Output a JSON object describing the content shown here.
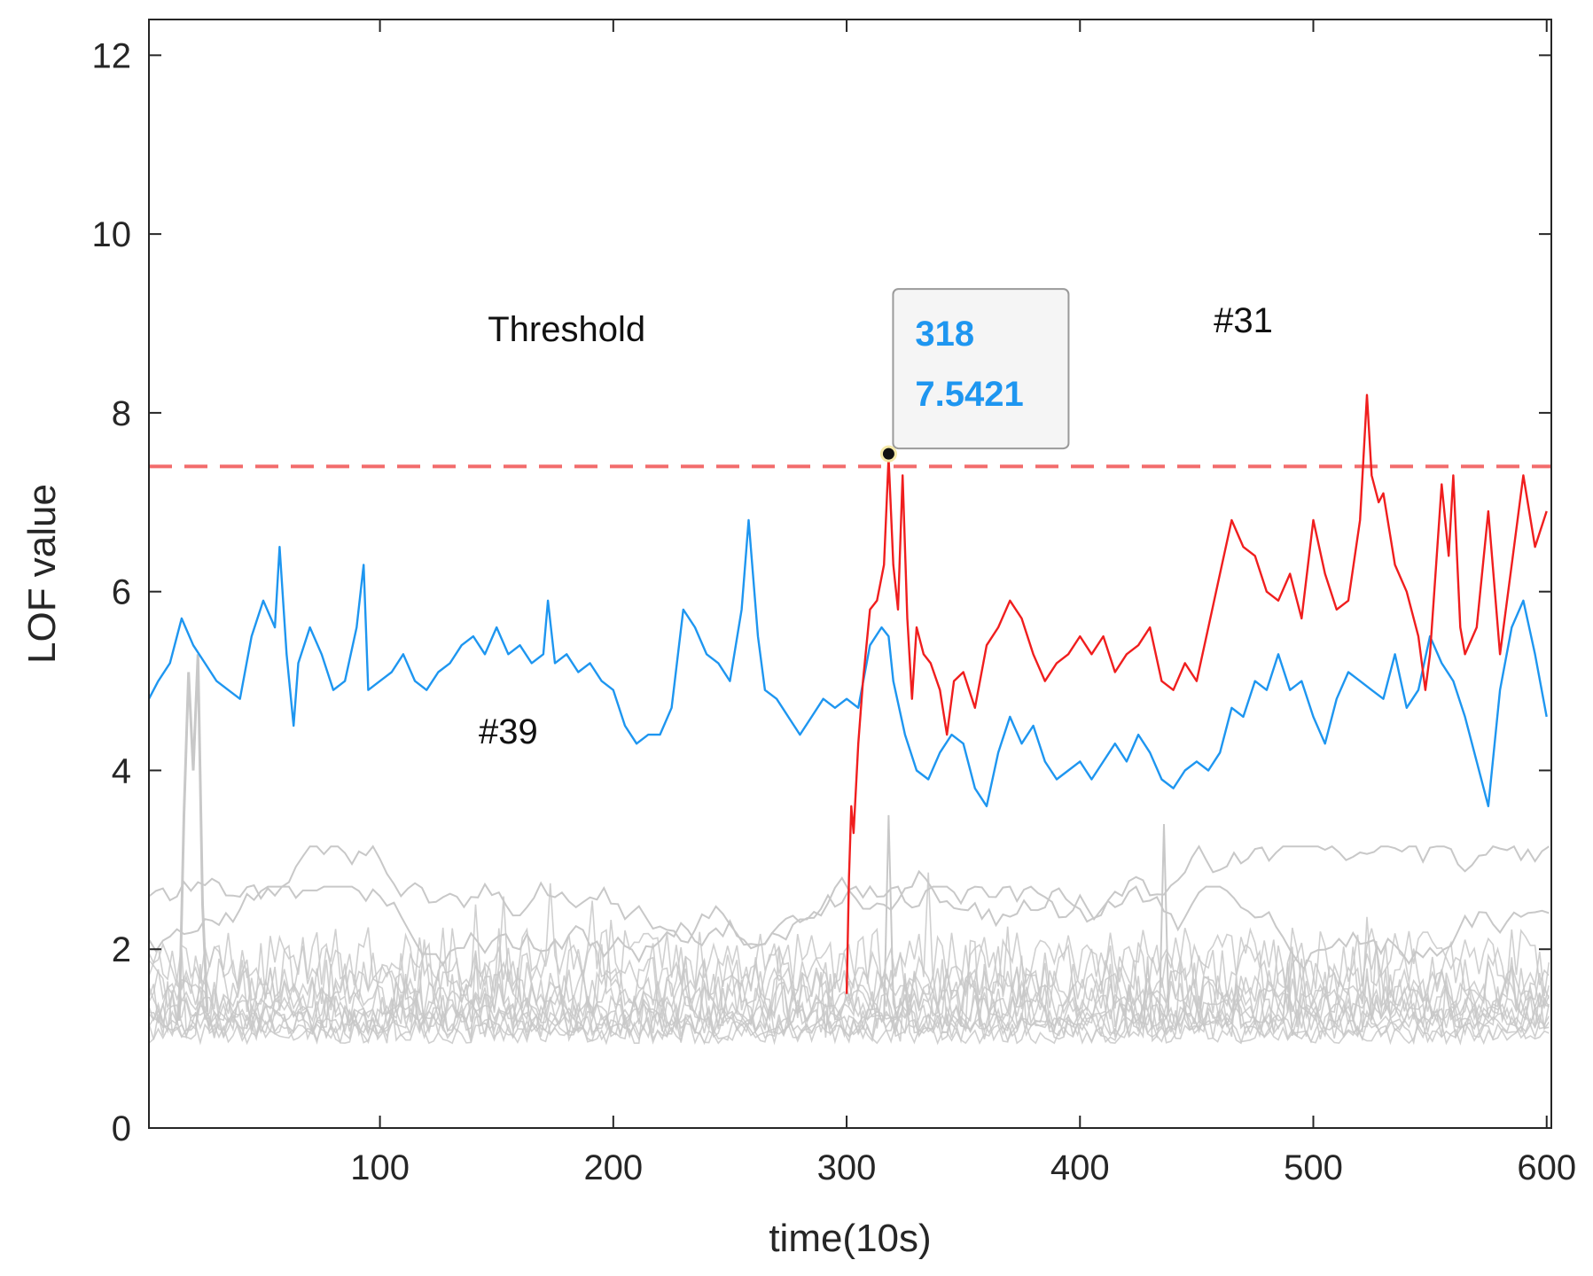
{
  "chart_data": {
    "type": "line",
    "title": "",
    "xlabel": "time(10s)",
    "ylabel": "LOF value",
    "xlim": [
      1,
      602
    ],
    "ylim": [
      0,
      12.4
    ],
    "xticks": [
      100,
      200,
      300,
      400,
      500,
      600
    ],
    "yticks": [
      0,
      2,
      4,
      6,
      8,
      10,
      12
    ],
    "grid": false,
    "threshold": {
      "label": "Threshold",
      "value": 7.4,
      "color": "#f26b6b"
    },
    "series": [
      {
        "name": "#39",
        "color": "#1e96f0",
        "x": [
          1,
          5,
          10,
          15,
          20,
          25,
          30,
          35,
          40,
          45,
          50,
          55,
          57,
          60,
          63,
          65,
          70,
          75,
          80,
          85,
          90,
          93,
          95,
          100,
          105,
          110,
          115,
          120,
          125,
          130,
          135,
          140,
          145,
          150,
          155,
          160,
          165,
          170,
          172,
          175,
          180,
          185,
          190,
          195,
          200,
          205,
          210,
          215,
          220,
          225,
          230,
          235,
          240,
          245,
          250,
          255,
          258,
          262,
          265,
          270,
          275,
          280,
          285,
          290,
          295,
          300,
          305,
          310,
          315,
          318,
          320,
          325,
          330,
          335,
          340,
          345,
          350,
          355,
          360,
          365,
          370,
          375,
          380,
          385,
          390,
          395,
          400,
          405,
          410,
          415,
          420,
          425,
          430,
          435,
          440,
          445,
          450,
          455,
          460,
          465,
          470,
          475,
          480,
          485,
          490,
          495,
          500,
          505,
          510,
          515,
          520,
          525,
          530,
          535,
          540,
          545,
          550,
          555,
          560,
          565,
          570,
          575,
          580,
          585,
          590,
          595,
          600
        ],
        "y": [
          4.8,
          5.0,
          5.2,
          5.7,
          5.4,
          5.2,
          5.0,
          4.9,
          4.8,
          5.5,
          5.9,
          5.6,
          6.5,
          5.3,
          4.5,
          5.2,
          5.6,
          5.3,
          4.9,
          5.0,
          5.6,
          6.3,
          4.9,
          5.0,
          5.1,
          5.3,
          5.0,
          4.9,
          5.1,
          5.2,
          5.4,
          5.5,
          5.3,
          5.6,
          5.3,
          5.4,
          5.2,
          5.3,
          5.9,
          5.2,
          5.3,
          5.1,
          5.2,
          5.0,
          4.9,
          4.5,
          4.3,
          4.4,
          4.4,
          4.7,
          5.8,
          5.6,
          5.3,
          5.2,
          5.0,
          5.8,
          6.8,
          5.5,
          4.9,
          4.8,
          4.6,
          4.4,
          4.6,
          4.8,
          4.7,
          4.8,
          4.7,
          5.4,
          5.6,
          5.5,
          5.0,
          4.4,
          4.0,
          3.9,
          4.2,
          4.4,
          4.3,
          3.8,
          3.6,
          4.2,
          4.6,
          4.3,
          4.5,
          4.1,
          3.9,
          4.0,
          4.1,
          3.9,
          4.1,
          4.3,
          4.1,
          4.4,
          4.2,
          3.9,
          3.8,
          4.0,
          4.1,
          4.0,
          4.2,
          4.7,
          4.6,
          5.0,
          4.9,
          5.3,
          4.9,
          5.0,
          4.6,
          4.3,
          4.8,
          5.1,
          5.0,
          4.9,
          4.8,
          5.3,
          4.7,
          4.9,
          5.5,
          5.2,
          5.0,
          4.6,
          4.1,
          3.6,
          4.9,
          5.6,
          5.9,
          5.3,
          4.6
        ]
      },
      {
        "name": "#31",
        "color": "#f01e1e",
        "x": [
          300,
          301,
          302,
          303,
          305,
          307,
          310,
          313,
          316,
          318,
          320,
          322,
          324,
          326,
          328,
          330,
          333,
          336,
          340,
          343,
          346,
          350,
          355,
          360,
          365,
          370,
          375,
          380,
          385,
          390,
          395,
          400,
          405,
          410,
          415,
          420,
          425,
          430,
          435,
          440,
          445,
          450,
          455,
          460,
          465,
          470,
          475,
          480,
          485,
          490,
          495,
          500,
          505,
          510,
          515,
          520,
          523,
          525,
          528,
          530,
          535,
          540,
          545,
          548,
          550,
          555,
          558,
          560,
          563,
          565,
          570,
          575,
          580,
          585,
          590,
          595,
          600
        ],
        "y": [
          1.5,
          2.8,
          3.6,
          3.3,
          4.3,
          5.0,
          5.8,
          5.9,
          6.3,
          7.5,
          6.3,
          5.8,
          7.3,
          5.7,
          4.8,
          5.6,
          5.3,
          5.2,
          4.9,
          4.4,
          5.0,
          5.1,
          4.7,
          5.4,
          5.6,
          5.9,
          5.7,
          5.3,
          5.0,
          5.2,
          5.3,
          5.5,
          5.3,
          5.5,
          5.1,
          5.3,
          5.4,
          5.6,
          5.0,
          4.9,
          5.2,
          5.0,
          5.6,
          6.2,
          6.8,
          6.5,
          6.4,
          6.0,
          5.9,
          6.2,
          5.7,
          6.8,
          6.2,
          5.8,
          5.9,
          6.8,
          8.2,
          7.3,
          7.0,
          7.1,
          6.3,
          6.0,
          5.5,
          4.9,
          5.3,
          7.2,
          6.4,
          7.3,
          5.6,
          5.3,
          5.6,
          6.9,
          5.3,
          6.3,
          7.3,
          6.5,
          6.9
        ]
      }
    ],
    "background_series_color": "#c8c8c8",
    "annotations": [
      {
        "text": "#39",
        "x": 155,
        "y": 4.3
      },
      {
        "text": "#31",
        "x": 470,
        "y": 8.9
      },
      {
        "text": "Threshold",
        "x": 180,
        "y": 8.8
      }
    ],
    "datatip": {
      "x_text": "318",
      "y_text": "7.5421",
      "x": 318,
      "y": 7.5421,
      "color": "#1e96f0"
    }
  }
}
